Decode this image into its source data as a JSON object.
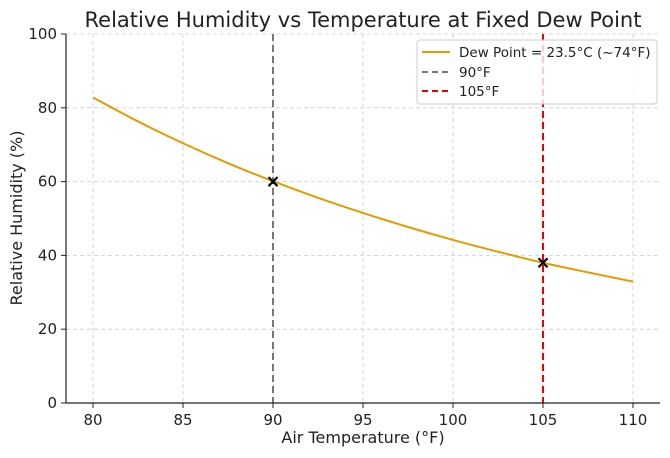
{
  "chart_data": {
    "type": "line",
    "title": "Relative Humidity vs Temperature at Fixed Dew Point",
    "xlabel": "Air Temperature (°F)",
    "ylabel": "Relative Humidity (%)",
    "xlim": [
      78.5,
      111.5
    ],
    "ylim": [
      0,
      100
    ],
    "xticks": [
      80,
      85,
      90,
      95,
      100,
      105,
      110
    ],
    "yticks": [
      0,
      20,
      40,
      60,
      80,
      100
    ],
    "grid": true,
    "legend_position": "top-right",
    "series": [
      {
        "name": "Dew Point = 23.5°C (~74°F)",
        "color": "#e69a00",
        "x": [
          80,
          82.5,
          85,
          87.5,
          90,
          92.5,
          95,
          97.5,
          100,
          102.5,
          105,
          107.5,
          110
        ],
        "y": [
          82.8,
          76.3,
          70.4,
          65.0,
          60.1,
          55.6,
          51.5,
          47.7,
          44.2,
          41.0,
          38.0,
          35.4,
          32.9
        ]
      }
    ],
    "vlines": [
      {
        "name": "90°F",
        "x": 90,
        "color": "#777777"
      },
      {
        "name": "105°F",
        "x": 105,
        "color": "#ee0000"
      }
    ],
    "markers": [
      {
        "x": 90,
        "y": 60
      },
      {
        "x": 105,
        "y": 38
      }
    ]
  }
}
